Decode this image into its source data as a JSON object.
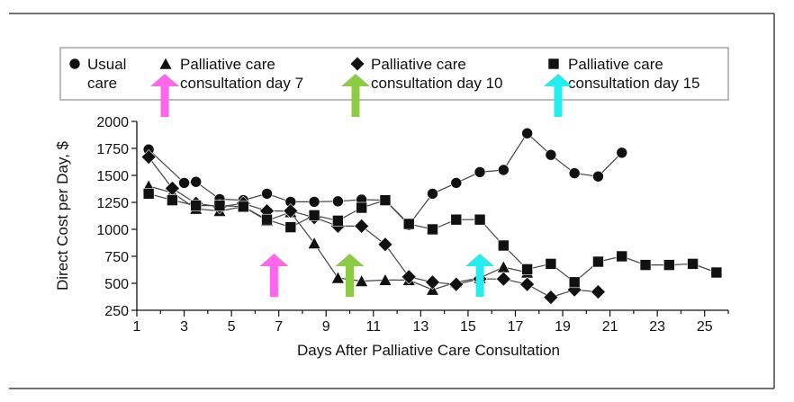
{
  "chart_data": {
    "type": "line",
    "title": "",
    "xlabel": "Days After Palliative Care Consultation",
    "ylabel": "Direct Cost per Day, $",
    "xlim": [
      1,
      26
    ],
    "ylim": [
      250,
      2000
    ],
    "xticks": [
      1,
      3,
      5,
      7,
      9,
      11,
      13,
      15,
      17,
      19,
      21,
      23,
      25
    ],
    "yticks": [
      250,
      500,
      750,
      1000,
      1250,
      1500,
      1750,
      2000
    ],
    "grid": false,
    "legend_position": "top",
    "colors": {
      "series": "#111111",
      "line": "#444444",
      "arrow_day7": "#ff66ee",
      "arrow_day10": "#8ccc44",
      "arrow_day15": "#22eeee"
    },
    "series": [
      {
        "name": "Usual care",
        "marker": "circle",
        "points": [
          [
            1.5,
            1740
          ],
          [
            3,
            1430
          ],
          [
            3.5,
            1440
          ],
          [
            4.5,
            1280
          ],
          [
            5.5,
            1270
          ],
          [
            6.5,
            1330
          ],
          [
            7.5,
            1255
          ],
          [
            8.5,
            1255
          ],
          [
            9.5,
            1260
          ],
          [
            10.5,
            1275
          ],
          [
            11.5,
            1270
          ],
          [
            12.5,
            1040
          ],
          [
            13.5,
            1330
          ],
          [
            14.5,
            1430
          ],
          [
            15.5,
            1530
          ],
          [
            16.5,
            1550
          ],
          [
            17.5,
            1890
          ],
          [
            18.5,
            1690
          ],
          [
            19.5,
            1520
          ],
          [
            20.5,
            1490
          ],
          [
            21.5,
            1710
          ]
        ]
      },
      {
        "name": "Palliative care consultation day 7",
        "marker": "triangle",
        "points": [
          [
            1.5,
            1400
          ],
          [
            2.5,
            1340
          ],
          [
            3.5,
            1190
          ],
          [
            4.5,
            1170
          ],
          [
            5.5,
            1210
          ],
          [
            6.5,
            1080
          ],
          [
            7.5,
            1160
          ],
          [
            8.5,
            870
          ],
          [
            9.5,
            550
          ],
          [
            10.5,
            520
          ],
          [
            11.5,
            530
          ],
          [
            12.5,
            530
          ],
          [
            13.5,
            440
          ],
          [
            14.5,
            510
          ],
          [
            15.5,
            550
          ],
          [
            16.5,
            650
          ],
          [
            17.5,
            600
          ]
        ]
      },
      {
        "name": "Palliative care consultation day 10",
        "marker": "diamond",
        "points": [
          [
            1.5,
            1670
          ],
          [
            2.5,
            1380
          ],
          [
            3.5,
            1240
          ],
          [
            4.5,
            1210
          ],
          [
            5.5,
            1240
          ],
          [
            6.5,
            1170
          ],
          [
            7.5,
            1170
          ],
          [
            8.5,
            1110
          ],
          [
            9.5,
            1030
          ],
          [
            10.5,
            1030
          ],
          [
            11.5,
            860
          ],
          [
            12.5,
            560
          ],
          [
            13.5,
            510
          ],
          [
            14.5,
            490
          ],
          [
            15.5,
            540
          ],
          [
            16.5,
            540
          ],
          [
            17.5,
            490
          ],
          [
            18.5,
            370
          ],
          [
            19.5,
            440
          ],
          [
            20.5,
            420
          ]
        ]
      },
      {
        "name": "Palliative care consultation day 15",
        "marker": "square",
        "points": [
          [
            1.5,
            1330
          ],
          [
            2.5,
            1270
          ],
          [
            3.5,
            1220
          ],
          [
            4.5,
            1220
          ],
          [
            5.5,
            1210
          ],
          [
            6.5,
            1090
          ],
          [
            7.5,
            1020
          ],
          [
            8.5,
            1130
          ],
          [
            9.5,
            1080
          ],
          [
            10.5,
            1200
          ],
          [
            11.5,
            1270
          ],
          [
            12.5,
            1050
          ],
          [
            13.5,
            1000
          ],
          [
            14.5,
            1090
          ],
          [
            15.5,
            1090
          ],
          [
            16.5,
            850
          ],
          [
            17.5,
            630
          ],
          [
            18.5,
            680
          ],
          [
            19.5,
            510
          ],
          [
            20.5,
            700
          ],
          [
            21.5,
            750
          ],
          [
            22.5,
            670
          ],
          [
            23.5,
            670
          ],
          [
            24.5,
            680
          ],
          [
            25.5,
            600
          ]
        ]
      }
    ],
    "legend": [
      {
        "marker": "circle",
        "lines": [
          "Usual",
          "care"
        ]
      },
      {
        "marker": "triangle",
        "lines": [
          "Palliative care",
          "consultation day 7"
        ]
      },
      {
        "marker": "diamond",
        "lines": [
          "Palliative care",
          "consultation day 10"
        ]
      },
      {
        "marker": "square",
        "lines": [
          "Palliative care",
          "consultation day 15"
        ]
      }
    ],
    "annotations": {
      "legend_arrows": [
        "arrow_day7",
        "arrow_day10",
        "arrow_day15"
      ],
      "plot_arrows": [
        {
          "color": "arrow_day7",
          "x": 6.8
        },
        {
          "color": "arrow_day10",
          "x": 10
        },
        {
          "color": "arrow_day15",
          "x": 15.5
        }
      ]
    }
  }
}
